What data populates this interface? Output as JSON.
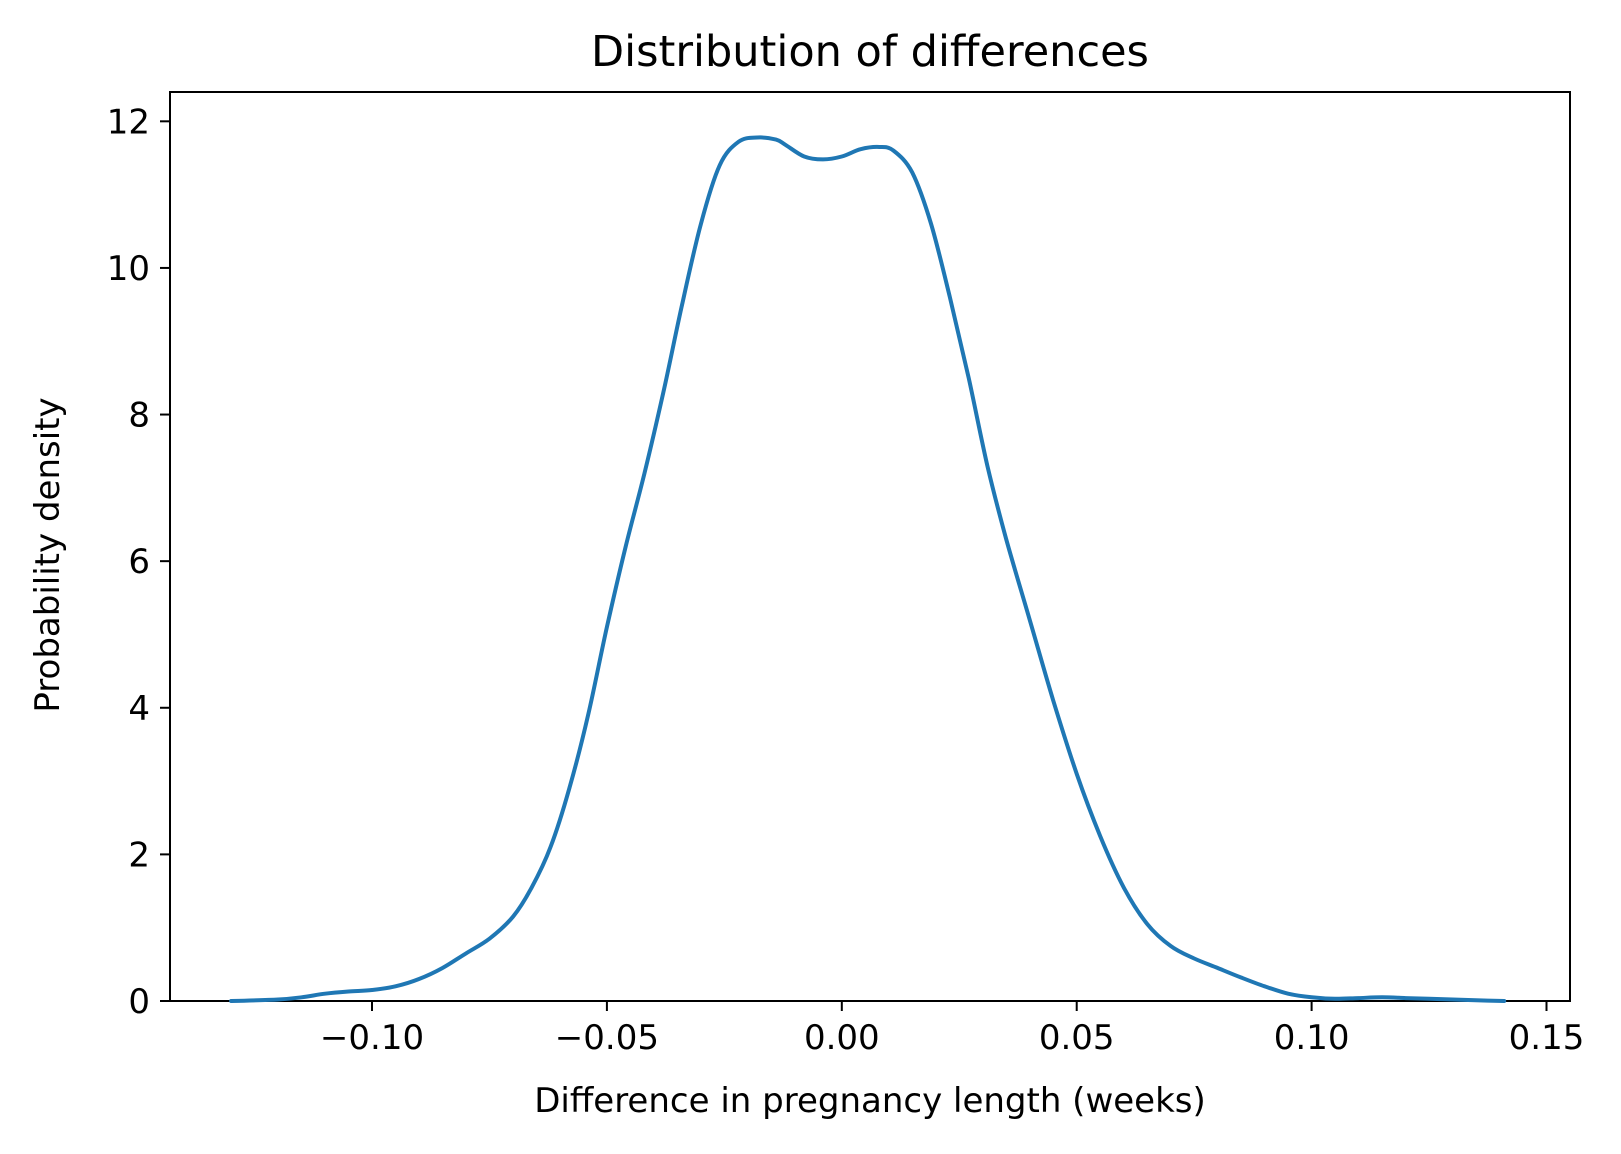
{
  "chart_data": {
    "type": "line",
    "title": "Distribution of differences",
    "xlabel": "Difference in pregnancy length (weeks)",
    "ylabel": "Probability density",
    "xlim": [
      -0.143,
      0.155
    ],
    "ylim": [
      0,
      12.4
    ],
    "x_ticks": [
      -0.1,
      -0.05,
      0.0,
      0.05,
      0.1,
      0.15
    ],
    "x_tick_labels": [
      "−0.10",
      "−0.05",
      "0.00",
      "0.05",
      "0.10",
      "0.15"
    ],
    "y_ticks": [
      0,
      2,
      4,
      6,
      8,
      10,
      12
    ],
    "y_tick_labels": [
      "0",
      "2",
      "4",
      "6",
      "8",
      "10",
      "12"
    ],
    "grid": false,
    "series": [
      {
        "color": "#1f77b4",
        "x": [
          -0.13,
          -0.12,
          -0.115,
          -0.11,
          -0.105,
          -0.1,
          -0.095,
          -0.09,
          -0.085,
          -0.08,
          -0.075,
          -0.07,
          -0.066,
          -0.062,
          -0.058,
          -0.054,
          -0.05,
          -0.046,
          -0.042,
          -0.038,
          -0.034,
          -0.03,
          -0.026,
          -0.022,
          -0.018,
          -0.014,
          -0.012,
          -0.008,
          -0.004,
          0.0,
          0.004,
          0.008,
          0.011,
          0.015,
          0.019,
          0.023,
          0.027,
          0.031,
          0.035,
          0.04,
          0.045,
          0.05,
          0.055,
          0.06,
          0.065,
          0.07,
          0.075,
          0.08,
          0.085,
          0.09,
          0.095,
          0.1,
          0.105,
          0.11,
          0.115,
          0.12,
          0.125,
          0.13,
          0.135,
          0.141
        ],
        "y": [
          0.0,
          0.02,
          0.05,
          0.1,
          0.13,
          0.15,
          0.2,
          0.3,
          0.45,
          0.65,
          0.85,
          1.15,
          1.55,
          2.1,
          2.9,
          3.9,
          5.1,
          6.2,
          7.2,
          8.3,
          9.5,
          10.6,
          11.4,
          11.72,
          11.78,
          11.75,
          11.68,
          11.52,
          11.48,
          11.52,
          11.62,
          11.65,
          11.6,
          11.3,
          10.6,
          9.6,
          8.5,
          7.3,
          6.3,
          5.2,
          4.1,
          3.1,
          2.25,
          1.55,
          1.05,
          0.75,
          0.58,
          0.45,
          0.32,
          0.2,
          0.1,
          0.05,
          0.03,
          0.04,
          0.05,
          0.04,
          0.03,
          0.02,
          0.01,
          0.0
        ]
      }
    ]
  }
}
